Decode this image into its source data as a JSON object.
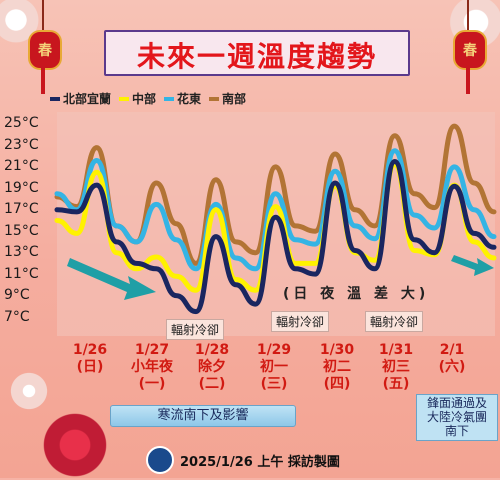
{
  "title": "未來一週溫度趨勢",
  "lantern_char": "春",
  "colors": {
    "north": "#1a2660",
    "central": "#fff200",
    "east": "#34b4e4",
    "south": "#b27435",
    "title_red": "#e3161b",
    "date_red": "#d11a12"
  },
  "chart_data": {
    "type": "line",
    "title": "未來一週溫度趨勢",
    "ylim": [
      6,
      26
    ],
    "yticks": [
      "25°C",
      "23°C",
      "21°C",
      "19°C",
      "17°C",
      "15°C",
      "13°C",
      "11°C",
      "9°C",
      "7°C"
    ],
    "ytick_values": [
      25,
      23,
      21,
      19,
      17,
      15,
      13,
      11,
      9,
      7
    ],
    "x_labels": [
      {
        "date": "1/26",
        "day": "(日)"
      },
      {
        "date": "1/27",
        "day": "小年夜",
        "extra": "(一)"
      },
      {
        "date": "1/28",
        "day": "除夕",
        "extra": "(二)"
      },
      {
        "date": "1/29",
        "day": "初一",
        "extra": "(三)"
      },
      {
        "date": "1/30",
        "day": "初二",
        "extra": "(四)"
      },
      {
        "date": "1/31",
        "day": "初三",
        "extra": "(五)"
      },
      {
        "date": "2/1",
        "day": "(六)"
      }
    ],
    "series": [
      {
        "name": "北部宜蘭",
        "color": "#1a2660",
        "values": [
          17,
          16.8,
          19.3,
          14,
          12,
          11.5,
          9,
          7.5,
          14.5,
          10,
          8.2,
          16.3,
          11.5,
          11,
          19.5,
          13.2,
          11.5,
          21.5,
          14.2,
          13,
          19.2,
          14.8,
          13.5
        ]
      },
      {
        "name": "中部",
        "color": "#fff200",
        "values": [
          16,
          14.8,
          20.5,
          13,
          11.5,
          12.6,
          10.8,
          9.5,
          17,
          10.5,
          9.5,
          17.3,
          12,
          12,
          19.2,
          13,
          12.3,
          21.2,
          13.2,
          12.8,
          19.3,
          14,
          12.5
        ]
      },
      {
        "name": "花東",
        "color": "#34b4e4",
        "values": [
          18.5,
          17,
          21.6,
          15.5,
          14,
          17.5,
          14.2,
          11.5,
          17.5,
          12.5,
          11.5,
          18.5,
          14.2,
          13.8,
          20.6,
          15.5,
          14.3,
          22.5,
          16.5,
          15.3,
          21,
          17,
          14.5
        ]
      },
      {
        "name": "南部",
        "color": "#b27435",
        "values": [
          18.2,
          17.3,
          22.8,
          15.5,
          14,
          19.5,
          15.7,
          12,
          19.8,
          14,
          13,
          21,
          15.5,
          15,
          22.2,
          17,
          15.5,
          23.9,
          18.5,
          17.2,
          24.8,
          19.5,
          16.8
        ]
      }
    ],
    "legend_position": "top-left",
    "grid": false
  },
  "diff_label": "(日 夜 溫 差 大)",
  "radiation_labels": [
    "輻射冷卻",
    "輻射冷卻",
    "輻射冷卻"
  ],
  "cold_wave": "寒流南下及影響",
  "front_note": [
    "鋒面通過及",
    "大陸冷氣團",
    "南下"
  ],
  "footer": "2025/1/26 上午 採訪製圖"
}
